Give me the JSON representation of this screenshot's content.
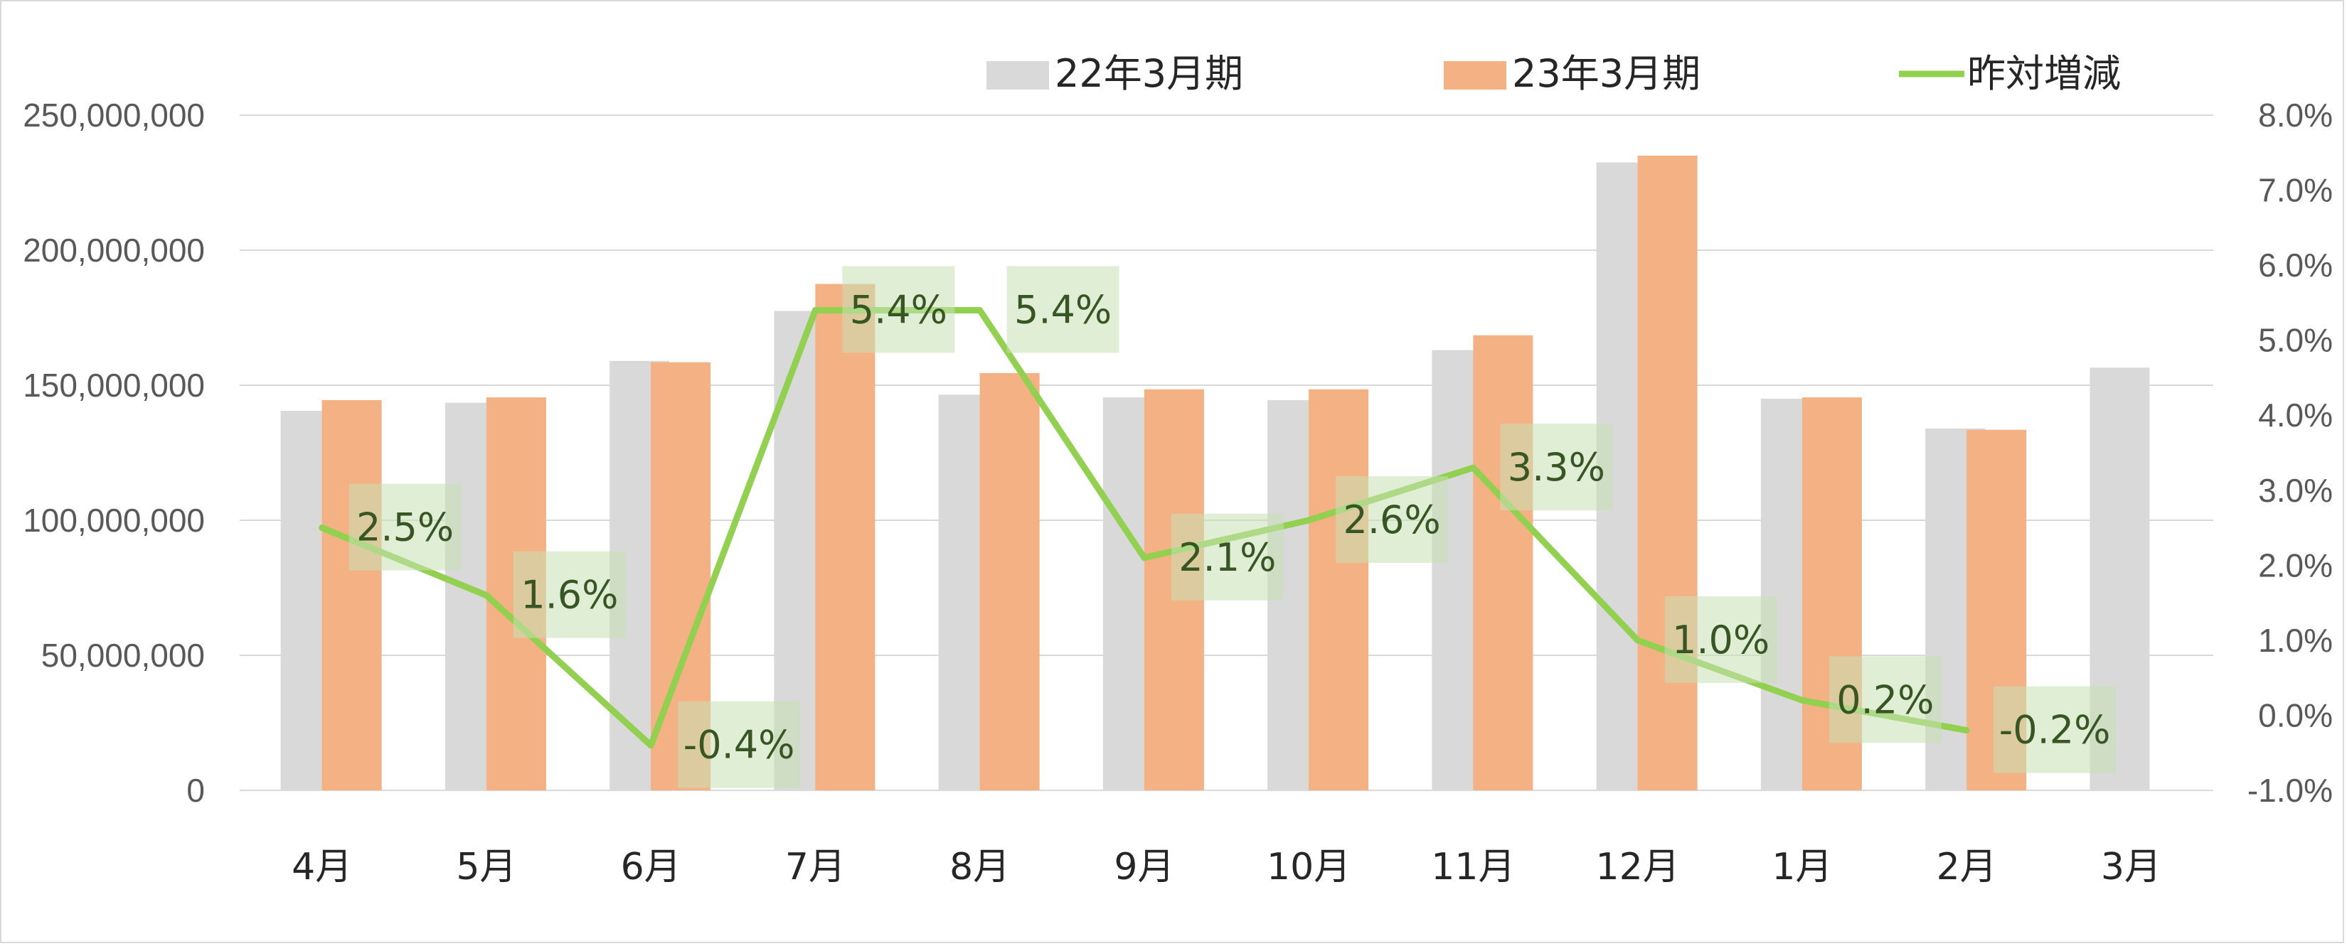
{
  "chart_data": {
    "type": "bar",
    "categories": [
      "4月",
      "5月",
      "6月",
      "7月",
      "8月",
      "9月",
      "10月",
      "11月",
      "12月",
      "1月",
      "2月",
      "3月"
    ],
    "series": [
      {
        "name": "22年3月期",
        "type": "bar",
        "axis": "left",
        "color": "#d9d9d9",
        "values": [
          140500000,
          143500000,
          159000000,
          177500000,
          146500000,
          145500000,
          144500000,
          163000000,
          232500000,
          145000000,
          134000000,
          156500000
        ]
      },
      {
        "name": "23年3月期",
        "type": "bar",
        "axis": "left",
        "color": "#f4b183",
        "values": [
          144500000,
          145500000,
          158500000,
          187500000,
          154500000,
          148500000,
          148500000,
          168500000,
          235000000,
          145500000,
          133500000,
          null
        ]
      },
      {
        "name": "昨対増減",
        "type": "line",
        "axis": "right",
        "color": "#92d050",
        "values": [
          2.5,
          1.6,
          -0.4,
          5.4,
          5.4,
          2.1,
          2.6,
          3.3,
          1.0,
          0.2,
          -0.2,
          null
        ],
        "labels": [
          "2.5%",
          "1.6%",
          "-0.4%",
          "5.4%",
          "5.4%",
          "2.1%",
          "2.6%",
          "3.3%",
          "1.0%",
          "0.2%",
          "-0.2%",
          null
        ]
      }
    ],
    "y_left": {
      "ylim": [
        0,
        250000000
      ],
      "ticks": [
        "0",
        "50,000,000",
        "100,000,000",
        "150,000,000",
        "200,000,000",
        "250,000,000"
      ]
    },
    "y_right": {
      "ylim": [
        -1.0,
        8.0
      ],
      "ticks": [
        "-1.0%",
        "0.0%",
        "1.0%",
        "2.0%",
        "3.0%",
        "4.0%",
        "5.0%",
        "6.0%",
        "7.0%",
        "8.0%"
      ]
    },
    "grid": true,
    "legend_position": "top",
    "label_box_color": "#c6e0b4",
    "gridline_color": "#d9d9d9"
  }
}
